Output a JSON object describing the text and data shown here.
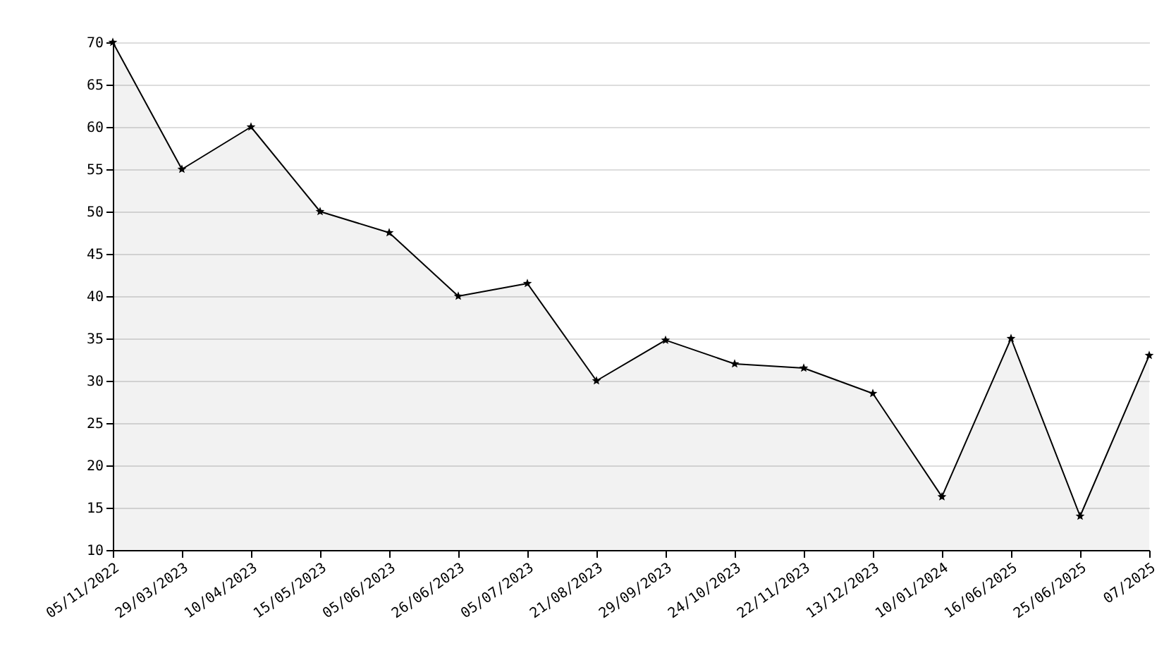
{
  "chart_data": {
    "type": "area",
    "categories": [
      "05/11/2022",
      "29/03/2023",
      "10/04/2023",
      "15/05/2023",
      "05/06/2023",
      "26/06/2023",
      "05/07/2023",
      "21/08/2023",
      "29/09/2023",
      "24/10/2023",
      "22/11/2023",
      "13/12/2023",
      "10/01/2024",
      "16/06/2025",
      "25/06/2025",
      "07/2025"
    ],
    "series": [
      {
        "color": "#000000",
        "values": [
          70,
          55,
          60,
          50,
          47.5,
          40,
          41.5,
          30,
          34.8,
          32,
          31.5,
          28.5,
          16.3,
          35,
          14,
          33
        ]
      }
    ],
    "ylim": [
      10,
      70
    ],
    "yticks": [
      10,
      15,
      20,
      25,
      30,
      35,
      40,
      45,
      50,
      55,
      60,
      65,
      70
    ],
    "grid": "y",
    "marker": "star"
  }
}
